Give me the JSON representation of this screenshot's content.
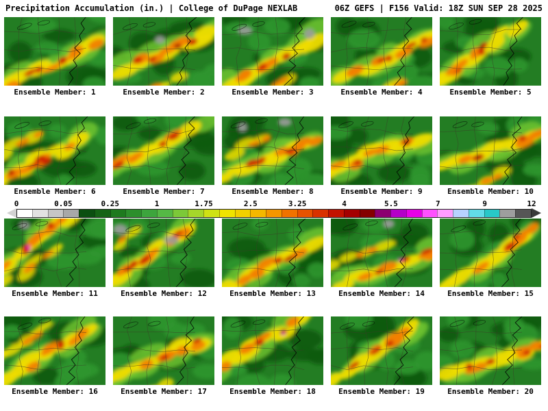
{
  "header": {
    "left": "Precipitation Accumulation (in.) | College of DuPage NEXLAB",
    "right": "06Z GEFS | F156 Valid: 18Z SUN SEP 28 2025"
  },
  "panels": [
    "Ensemble Member: 1",
    "Ensemble Member: 2",
    "Ensemble Member: 3",
    "Ensemble Member: 4",
    "Ensemble Member: 5",
    "Ensemble Member: 6",
    "Ensemble Member: 7",
    "Ensemble Member: 8",
    "Ensemble Member: 9",
    "Ensemble Member: 10",
    "Ensemble Member: 11",
    "Ensemble Member: 12",
    "Ensemble Member: 13",
    "Ensemble Member: 14",
    "Ensemble Member: 15",
    "Ensemble Member: 16",
    "Ensemble Member: 17",
    "Ensemble Member: 18",
    "Ensemble Member: 19",
    "Ensemble Member: 20"
  ],
  "colorbar": {
    "ticks": [
      "0",
      "0.05",
      "0.25",
      "1",
      "1.75",
      "2.5",
      "3.25",
      "4",
      "5.5",
      "7",
      "9",
      "12"
    ],
    "segment_colors": [
      "#ffffff",
      "#e2e2e2",
      "#c6c6c6",
      "#a8a8a8",
      "#0b4f10",
      "#156315",
      "#1e7a1e",
      "#2c8f2c",
      "#3da53d",
      "#55b945",
      "#7cc938",
      "#a5d72a",
      "#cfe214",
      "#f0e400",
      "#f2d000",
      "#f4b800",
      "#f49600",
      "#f07200",
      "#e85200",
      "#d93200",
      "#c21200",
      "#a40000",
      "#840000",
      "#8c0070",
      "#b400c8",
      "#e600e6",
      "#ff50ff",
      "#ff9cff",
      "#b8d2ff",
      "#62dce8",
      "#28c8c8",
      "#9e9e9e",
      "#565656"
    ]
  },
  "map_palette": {
    "base": "#237d23",
    "dark_green": "#0f5a0f",
    "mid_green": "#2f962f",
    "light_green": "#6fc32e",
    "yellow": "#eedc00",
    "gold": "#f4b400",
    "orange": "#f28000",
    "red": "#cc1a00",
    "dark_red": "#8c0000",
    "magenta": "#e000e0",
    "gray": "#9c9c9c",
    "border": "#3c3c28",
    "coast": "#000000"
  }
}
